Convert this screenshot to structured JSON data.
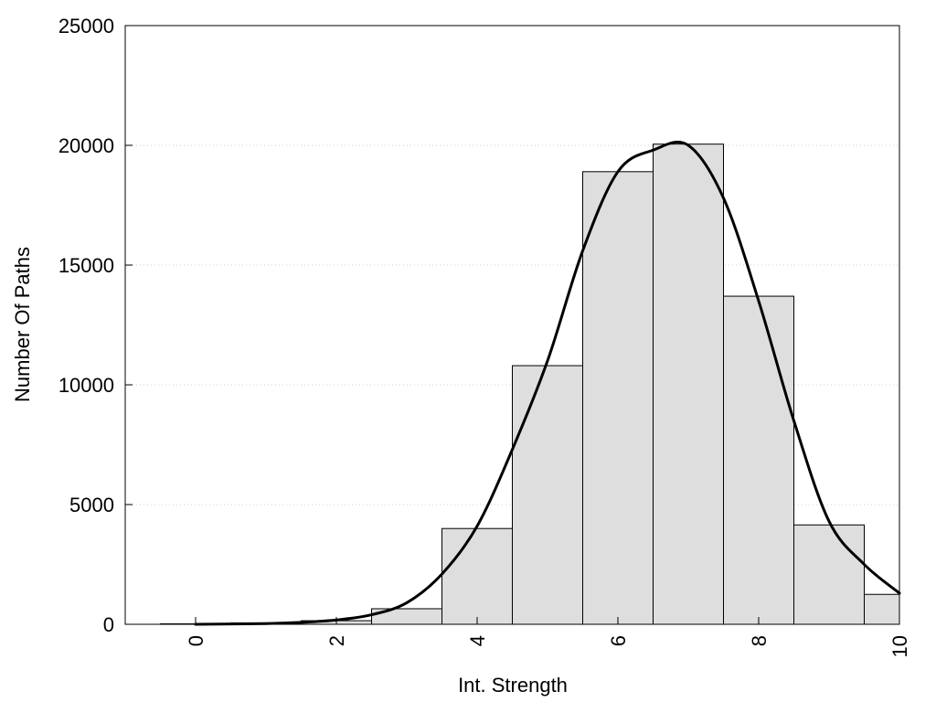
{
  "chart_data": {
    "type": "bar",
    "title": "",
    "xlabel": "Int. Strength",
    "ylabel": "Number Of Paths",
    "xlim": [
      -1,
      10
    ],
    "ylim": [
      0,
      25000
    ],
    "x_ticks": [
      "0",
      "2",
      "4",
      "6",
      "8",
      "10"
    ],
    "x_tick_values": [
      0,
      2,
      4,
      6,
      8,
      10
    ],
    "y_ticks": [
      "0",
      "5000",
      "10000",
      "15000",
      "20000",
      "25000"
    ],
    "y_tick_values": [
      0,
      5000,
      10000,
      15000,
      20000,
      25000
    ],
    "grid": "horizontal dotted",
    "bar_color": "#dedede",
    "histogram": {
      "bin_width": 1,
      "centers": [
        0,
        1,
        2,
        3,
        4,
        5,
        6,
        7,
        8,
        9,
        10
      ],
      "values": [
        20,
        60,
        150,
        650,
        4000,
        10800,
        18900,
        20050,
        13700,
        4150,
        1250
      ]
    },
    "density_curve": {
      "x": [
        0,
        1,
        1.5,
        2,
        2.5,
        3,
        3.5,
        4,
        4.5,
        5,
        5.5,
        6,
        6.5,
        7,
        7.5,
        8,
        8.5,
        9,
        9.5,
        10
      ],
      "y": [
        0,
        30,
        80,
        180,
        400,
        900,
        2100,
        4100,
        7300,
        11000,
        15600,
        18900,
        19800,
        20000,
        17800,
        13500,
        8500,
        4300,
        2500,
        1300
      ]
    }
  }
}
